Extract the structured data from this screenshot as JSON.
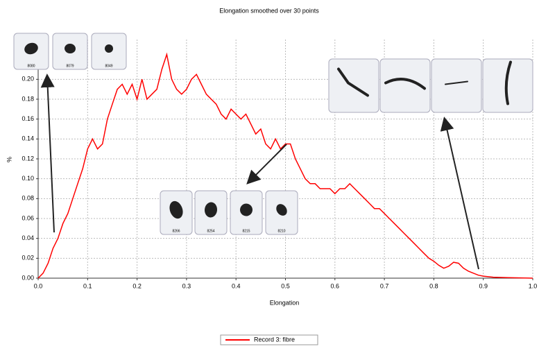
{
  "chart_data": {
    "type": "line",
    "title": "Elongation smoothed over 30 points",
    "x_label": "Elongation",
    "y_label": "%",
    "x": [
      0.0,
      0.01,
      0.02,
      0.03,
      0.04,
      0.05,
      0.06,
      0.07,
      0.08,
      0.09,
      0.1,
      0.11,
      0.12,
      0.13,
      0.14,
      0.15,
      0.16,
      0.17,
      0.18,
      0.19,
      0.2,
      0.21,
      0.22,
      0.23,
      0.24,
      0.25,
      0.26,
      0.27,
      0.28,
      0.29,
      0.3,
      0.31,
      0.32,
      0.33,
      0.34,
      0.35,
      0.36,
      0.37,
      0.38,
      0.39,
      0.4,
      0.41,
      0.42,
      0.43,
      0.44,
      0.45,
      0.46,
      0.47,
      0.48,
      0.49,
      0.5,
      0.51,
      0.52,
      0.53,
      0.54,
      0.55,
      0.56,
      0.57,
      0.58,
      0.59,
      0.6,
      0.61,
      0.62,
      0.63,
      0.64,
      0.65,
      0.66,
      0.67,
      0.68,
      0.69,
      0.7,
      0.71,
      0.72,
      0.73,
      0.74,
      0.75,
      0.76,
      0.77,
      0.78,
      0.79,
      0.8,
      0.81,
      0.82,
      0.83,
      0.84,
      0.85,
      0.86,
      0.87,
      0.88,
      0.89,
      0.9,
      0.92,
      0.95,
      1.0
    ],
    "series": [
      {
        "name": "Record 3: fibre",
        "color": "#ff0000",
        "values": [
          0,
          0.005,
          0.015,
          0.03,
          0.04,
          0.055,
          0.065,
          0.08,
          0.095,
          0.11,
          0.13,
          0.14,
          0.13,
          0.135,
          0.16,
          0.175,
          0.19,
          0.195,
          0.185,
          0.195,
          0.18,
          0.2,
          0.18,
          0.185,
          0.19,
          0.21,
          0.225,
          0.2,
          0.19,
          0.185,
          0.19,
          0.2,
          0.205,
          0.195,
          0.185,
          0.18,
          0.175,
          0.165,
          0.16,
          0.17,
          0.165,
          0.16,
          0.165,
          0.155,
          0.145,
          0.15,
          0.135,
          0.13,
          0.14,
          0.13,
          0.135,
          0.135,
          0.12,
          0.11,
          0.1,
          0.095,
          0.095,
          0.09,
          0.09,
          0.09,
          0.085,
          0.09,
          0.09,
          0.095,
          0.09,
          0.085,
          0.08,
          0.075,
          0.07,
          0.07,
          0.065,
          0.06,
          0.055,
          0.05,
          0.045,
          0.04,
          0.035,
          0.03,
          0.025,
          0.02,
          0.017,
          0.013,
          0.01,
          0.012,
          0.016,
          0.015,
          0.01,
          0.007,
          0.005,
          0.003,
          0.002,
          0.001,
          0.0005,
          0
        ]
      }
    ],
    "xlim": [
      0,
      1
    ],
    "ylim": [
      0,
      0.24
    ],
    "xticks": [
      {
        "value": 0,
        "label": "0.0"
      },
      0.1,
      0.2,
      0.3,
      0.4,
      0.5,
      0.6,
      0.7,
      0.8,
      0.9,
      {
        "value": 1,
        "label": "1.0"
      }
    ],
    "yticks": [
      {
        "value": 0,
        "label": "0.00"
      },
      0.02,
      0.04,
      0.06,
      0.08,
      {
        "value": 0.1,
        "label": "0.10"
      },
      0.12,
      0.14,
      0.16,
      0.18,
      {
        "value": 0.2,
        "label": "0.20"
      }
    ],
    "grid": true,
    "legend": "bottom",
    "thumbnail_labels": [
      [
        "8080",
        "8079",
        "8049"
      ],
      [
        "8266",
        "8254",
        "8215",
        "8210"
      ]
    ]
  }
}
